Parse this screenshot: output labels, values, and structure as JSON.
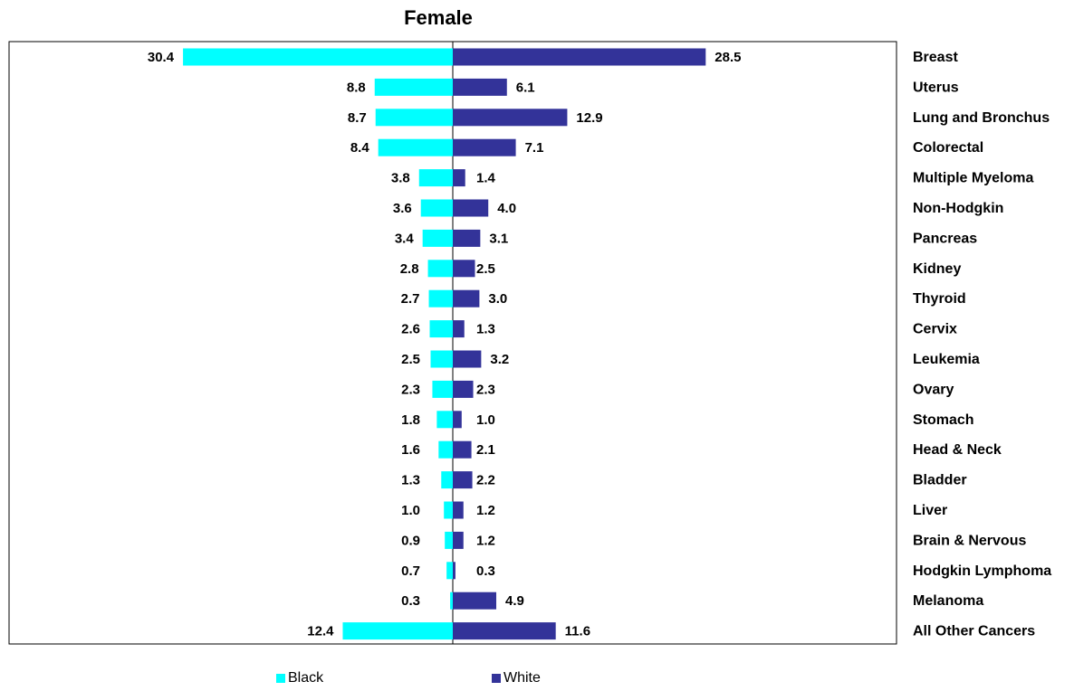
{
  "chart_data": {
    "type": "bar",
    "orientation": "horizontal-butterfly",
    "title": "Female",
    "categories": [
      "Breast",
      "Uterus",
      "Lung and Bronchus",
      "Colorectal",
      "Multiple Myeloma",
      "Non-Hodgkin",
      "Pancreas",
      "Kidney",
      "Thyroid",
      "Cervix",
      "Leukemia",
      "Ovary",
      "Stomach",
      "Head & Neck",
      "Bladder",
      "Liver",
      "Brain & Nervous",
      "Hodgkin Lymphoma",
      "Melanoma",
      "All Other Cancers"
    ],
    "series": [
      {
        "name": "Black",
        "color": "#00FFFF",
        "direction": "left",
        "values": [
          30.4,
          8.8,
          8.7,
          8.4,
          3.8,
          3.6,
          3.4,
          2.8,
          2.7,
          2.6,
          2.5,
          2.3,
          1.8,
          1.6,
          1.3,
          1.0,
          0.9,
          0.7,
          0.3,
          12.4
        ],
        "labels": [
          "30.4",
          "8.8",
          "8.7",
          "8.4",
          "3.8",
          "3.6",
          "3.4",
          "2.8",
          "2.7",
          "2.6",
          "2.5",
          "2.3",
          "1.8",
          "1.6",
          "1.3",
          "1.0",
          "0.9",
          "0.7",
          "0.3",
          "12.4"
        ]
      },
      {
        "name": "White",
        "color": "#333399",
        "direction": "right",
        "values": [
          28.5,
          6.1,
          12.9,
          7.1,
          1.4,
          4.0,
          3.1,
          2.5,
          3.0,
          1.3,
          3.2,
          2.3,
          1.0,
          2.1,
          2.2,
          1.2,
          1.2,
          0.3,
          4.9,
          11.6
        ],
        "labels": [
          "28.5",
          "6.1",
          "12.9",
          "7.1",
          "1.4",
          "4.0",
          "3.1",
          "2.5",
          "3.0",
          "1.3",
          "3.2",
          "2.3",
          "1.0",
          "2.1",
          "2.2",
          "1.2",
          "1.2",
          "0.3",
          "4.9",
          "11.6"
        ]
      }
    ],
    "xlim": [
      -50,
      50
    ],
    "legend_position": "bottom",
    "grid": false
  }
}
